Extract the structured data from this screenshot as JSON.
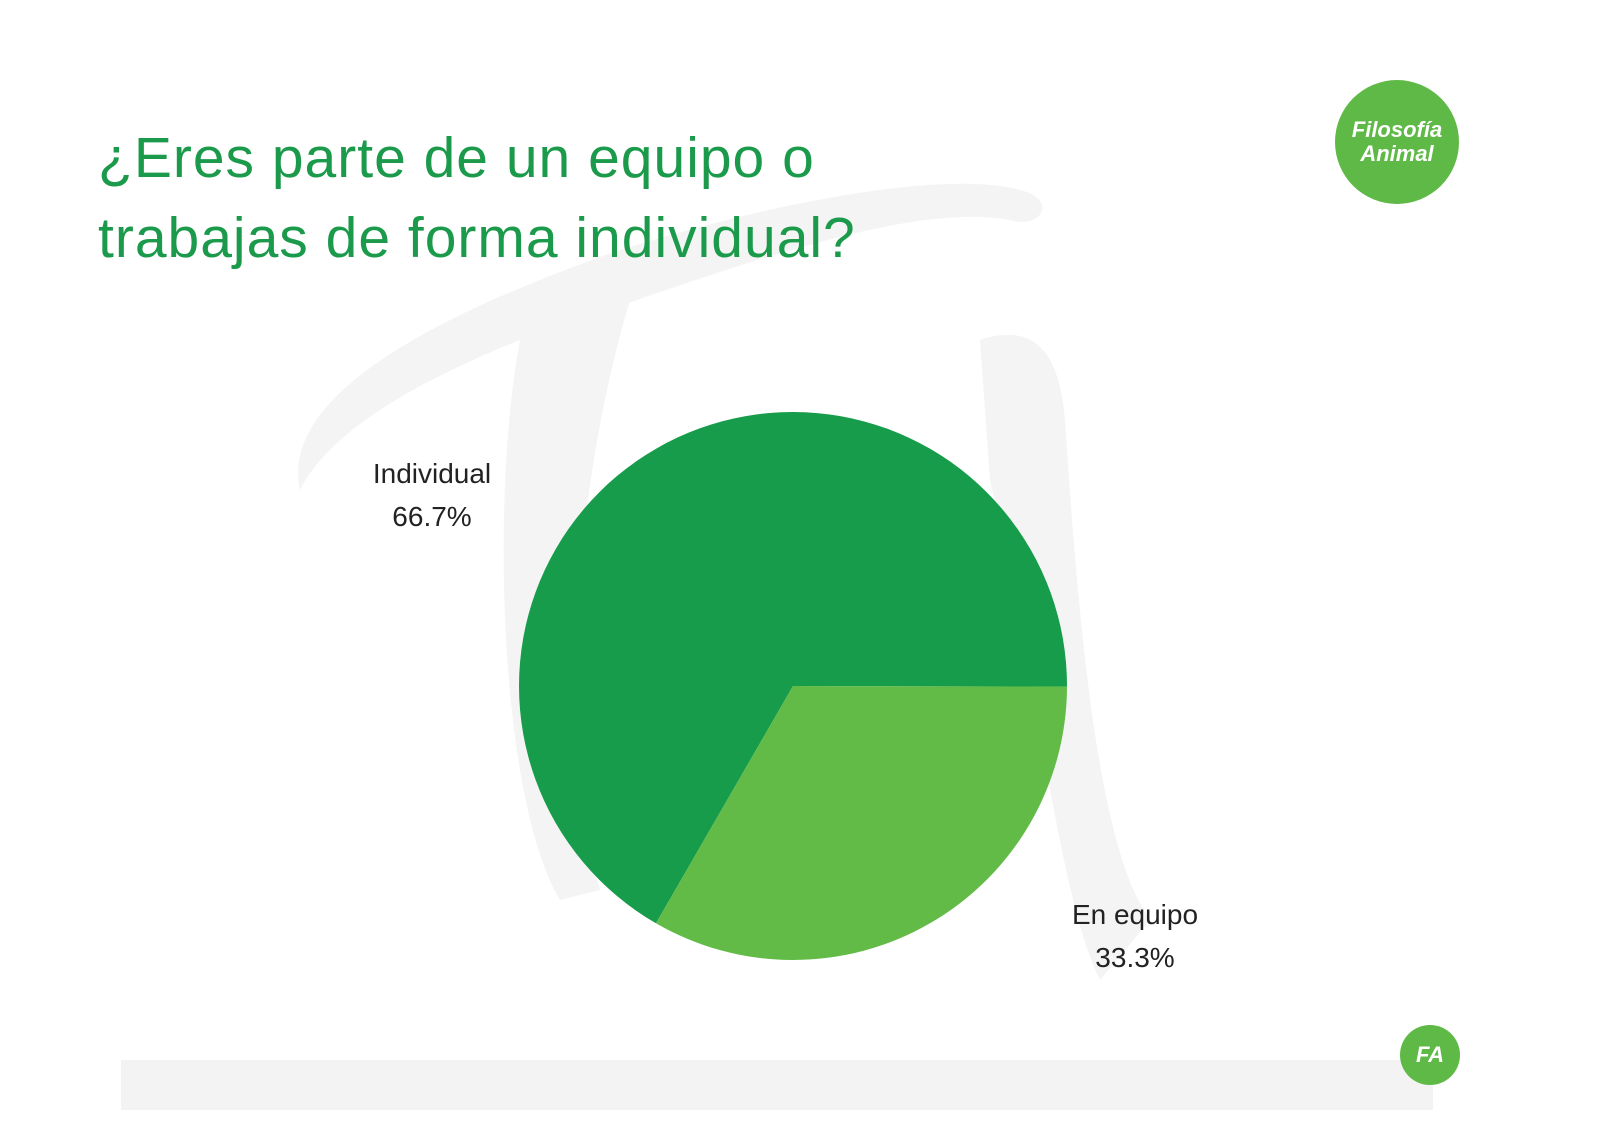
{
  "chart_data": {
    "type": "pie",
    "title": "¿Eres parte de un equipo o trabajas de forma individual?",
    "categories": [
      "Individual",
      "En equipo"
    ],
    "values": [
      66.7,
      33.3
    ],
    "value_labels": [
      "66.7%",
      "33.3%"
    ],
    "colors": [
      "#169c4a",
      "#62bb47"
    ]
  },
  "brand": {
    "logo": "Filosofía Animal",
    "footer_logo": "FA"
  }
}
